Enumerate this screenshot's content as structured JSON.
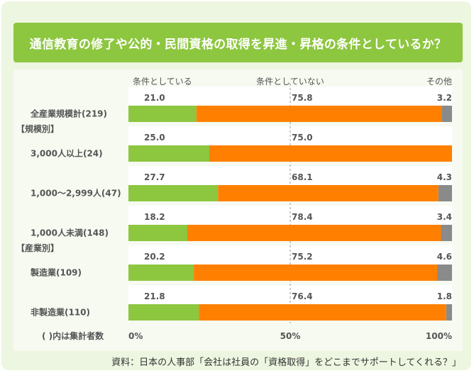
{
  "title": "通信教育の修了や公的・民間資格の取得を昇進・昇格の条件としているか？",
  "source": "資料：日本の人事部「会社は社員の「資格取得」をどこまでサポートしてくれる？」",
  "footnote": "( )内は集計者数",
  "colors": {
    "title_bg": "#8dc63f",
    "panel_bg": "#f6faf1",
    "frame_bg": "#edf6e0",
    "green": "#8dc63f",
    "orange": "#ff8000",
    "gray": "#8a8a8a",
    "label_text": "#555555"
  },
  "chart_data": {
    "type": "bar",
    "orientation": "horizontal",
    "stacked": true,
    "xlim": [
      0,
      100
    ],
    "x_tick_labels": [
      "0%",
      "50%",
      "100%"
    ],
    "legend": [
      "条件としている",
      "条件としていない",
      "その他"
    ],
    "section_labels": [
      {
        "label": "【規模別】",
        "after_row": 0
      },
      {
        "label": "【産業別】",
        "after_row": 3
      }
    ],
    "categories": [
      "全産業規模計(219)",
      "3,000人以上(24)",
      "1,000～2,999人(47)",
      "1,000人未満(148)",
      "製造業(109)",
      "非製造業(110)"
    ],
    "series": [
      {
        "name": "条件としている",
        "values": [
          21.0,
          25.0,
          27.7,
          18.2,
          20.2,
          21.8
        ]
      },
      {
        "name": "条件としていない",
        "values": [
          75.8,
          75.0,
          68.1,
          78.4,
          75.2,
          76.4
        ]
      },
      {
        "name": "その他",
        "values": [
          3.2,
          0,
          4.3,
          3.4,
          4.6,
          1.8
        ]
      }
    ],
    "value_labels": [
      [
        "21.0",
        "75.8",
        "3.2"
      ],
      [
        "25.0",
        "75.0",
        ""
      ],
      [
        "27.7",
        "68.1",
        "4.3"
      ],
      [
        "18.2",
        "78.4",
        "3.4"
      ],
      [
        "20.2",
        "75.2",
        "4.6"
      ],
      [
        "21.8",
        "76.4",
        "1.8"
      ]
    ]
  }
}
